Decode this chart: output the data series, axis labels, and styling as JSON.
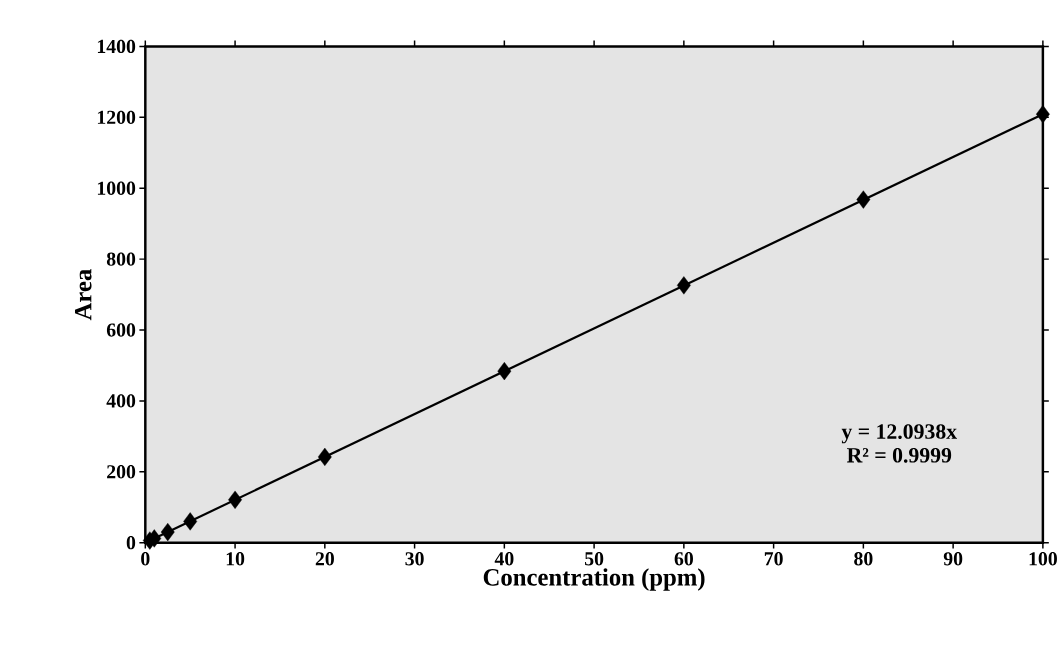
{
  "chart_data": {
    "type": "scatter",
    "xlabel": "Concentration (ppm)",
    "ylabel": "Area",
    "xlim": [
      0,
      100
    ],
    "ylim": [
      0,
      1400
    ],
    "xticks": [
      0,
      10,
      20,
      30,
      40,
      50,
      60,
      70,
      80,
      90,
      100
    ],
    "yticks": [
      0,
      200,
      400,
      600,
      800,
      1000,
      1200,
      1400
    ],
    "grid": false,
    "marker": "diamond",
    "series": [
      {
        "color": "#000000",
        "x": [
          0.5,
          1,
          2.5,
          5,
          10,
          20,
          40,
          60,
          80,
          100
        ],
        "values": [
          6,
          12,
          30,
          60,
          121,
          242,
          484,
          726,
          968,
          1209
        ]
      },
      {
        "type": "line",
        "color": "#000000",
        "marker": "none",
        "line_style": "solid",
        "x": [
          0,
          100
        ],
        "values": [
          0,
          1209
        ]
      }
    ],
    "annotations": [
      "y = 12.0938x",
      "R² = 0.9999"
    ]
  }
}
